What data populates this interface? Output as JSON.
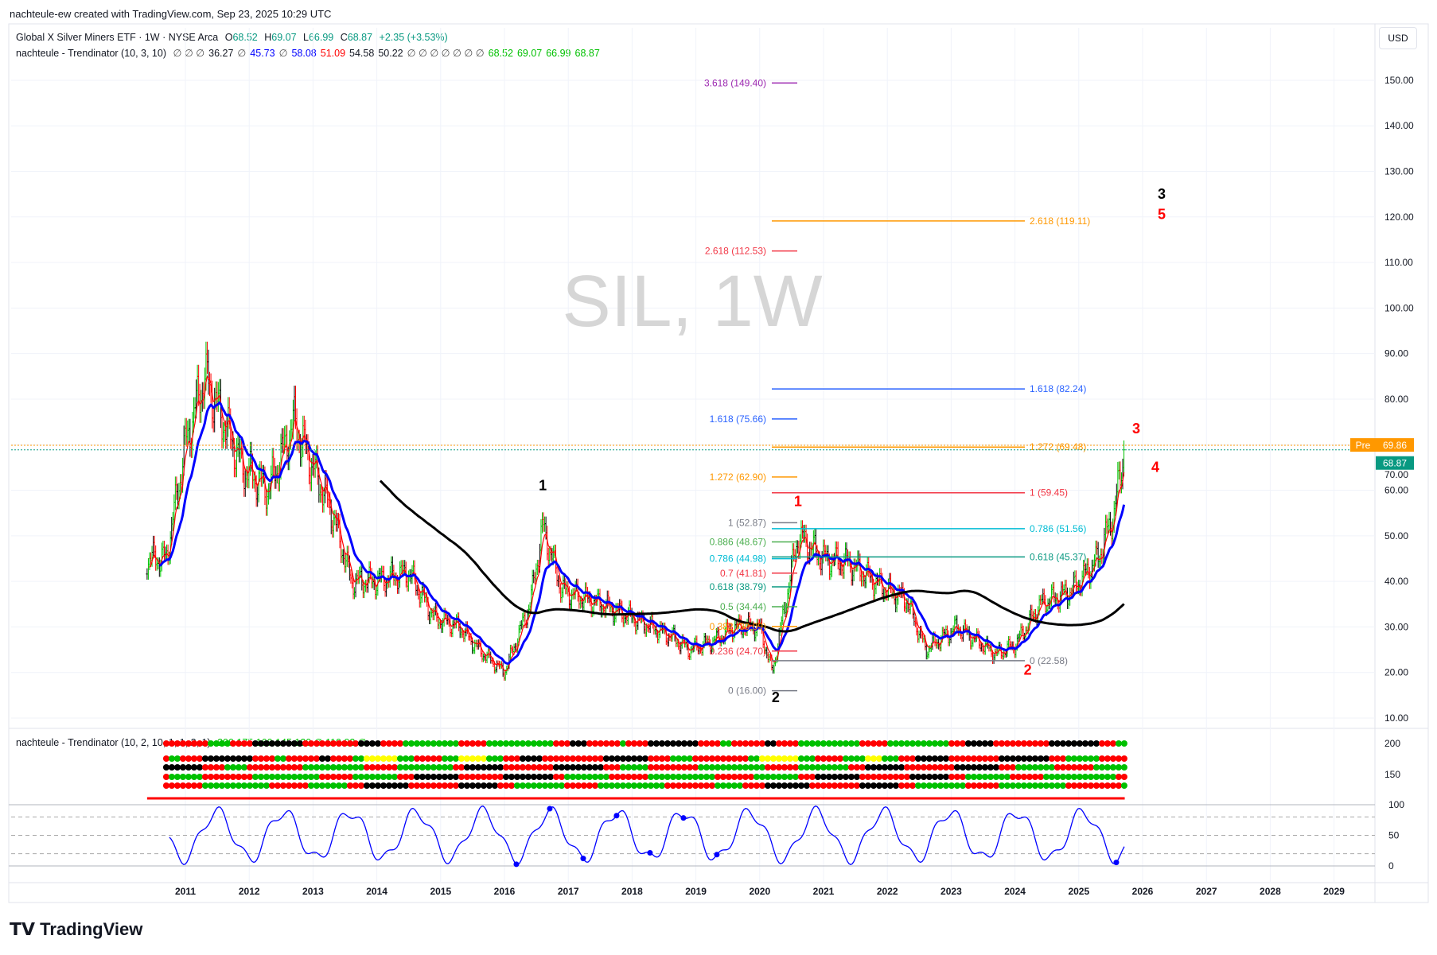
{
  "credit": "nachteule-ew created with TradingView.com, Sep 23, 2025 10:29 UTC",
  "legend": {
    "symbol": "Global X Silver Miners ETF · 1W · NYSE Arca",
    "o_label": "O",
    "o": "68.52",
    "h_label": "H",
    "h": "69.07",
    "l_label": "L",
    "l": "66.99",
    "c_label": "C",
    "c": "68.87",
    "change": "+2.35 (+3.53%)",
    "ind1_name": "nachteule - Trendinator (10, 3, 10)",
    "ind1_values": [
      {
        "t": "∅ ∅ ∅",
        "c": "#555"
      },
      {
        "t": "36.27",
        "c": "#131722"
      },
      {
        "t": "∅",
        "c": "#555"
      },
      {
        "t": "45.73",
        "c": "#0000ff"
      },
      {
        "t": "∅",
        "c": "#555"
      },
      {
        "t": "58.08",
        "c": "#0000ff"
      },
      {
        "t": "51.09",
        "c": "#ff0000"
      },
      {
        "t": "54.58",
        "c": "#131722"
      },
      {
        "t": "50.22",
        "c": "#131722"
      },
      {
        "t": "∅ ∅ ∅ ∅ ∅ ∅ ∅",
        "c": "#555"
      },
      {
        "t": "68.52",
        "c": "#00c000"
      },
      {
        "t": "69.07",
        "c": "#00c000"
      },
      {
        "t": "66.99",
        "c": "#00c000"
      },
      {
        "t": "68.87",
        "c": "#00c000"
      }
    ],
    "ind2_name": "nachteule - Trendinator (10, 2, 10, 1, 1, 2, 1)",
    "ind2_values": "200 175 160 145 130 ∅ 110 93 ∅"
  },
  "currency": "USD",
  "watermark": "SIL, 1W",
  "pre_label": "Pre",
  "pre_price": "69.86",
  "last_price": "68.87",
  "logo": "TradingView",
  "colors": {
    "up": "#00c000",
    "down": "#ff0000",
    "neutral": "#000000",
    "blue": "#0000ff",
    "teal": "#089981",
    "orange": "#ff9800"
  },
  "chart_data": {
    "type": "candlestick",
    "symbol": "SIL",
    "interval": "1W",
    "x_ticks": [
      "2011",
      "2012",
      "2013",
      "2014",
      "2015",
      "2016",
      "2017",
      "2018",
      "2019",
      "2020",
      "2021",
      "2022",
      "2023",
      "2024",
      "2025",
      "2026",
      "2027",
      "2028",
      "2029"
    ],
    "y_ticks": [
      "150.00",
      "140.00",
      "130.00",
      "120.00",
      "110.00",
      "100.00",
      "90.00",
      "80.00",
      "70.00",
      "60.00",
      "50.00",
      "40.00",
      "30.00",
      "20.00",
      "10.00"
    ],
    "ylim": [
      10,
      150
    ],
    "close_keypoints": [
      [
        2010.4,
        45
      ],
      [
        2010.7,
        45
      ],
      [
        2011.0,
        70
      ],
      [
        2011.3,
        85
      ],
      [
        2011.6,
        75
      ],
      [
        2011.9,
        65
      ],
      [
        2012.3,
        60
      ],
      [
        2012.7,
        75
      ],
      [
        2013.0,
        65
      ],
      [
        2013.3,
        55
      ],
      [
        2013.6,
        40
      ],
      [
        2014.0,
        40
      ],
      [
        2014.5,
        42
      ],
      [
        2014.9,
        32
      ],
      [
        2015.3,
        30
      ],
      [
        2015.6,
        25
      ],
      [
        2016.0,
        20
      ],
      [
        2016.4,
        35
      ],
      [
        2016.6,
        52
      ],
      [
        2016.9,
        38
      ],
      [
        2017.5,
        35
      ],
      [
        2018.0,
        32
      ],
      [
        2018.6,
        28
      ],
      [
        2018.9,
        25
      ],
      [
        2019.3,
        27
      ],
      [
        2019.6,
        30
      ],
      [
        2020.0,
        30
      ],
      [
        2020.2,
        20
      ],
      [
        2020.6,
        50
      ],
      [
        2021.0,
        45
      ],
      [
        2021.4,
        44
      ],
      [
        2022.0,
        38
      ],
      [
        2022.3,
        36
      ],
      [
        2022.6,
        25
      ],
      [
        2023.1,
        30
      ],
      [
        2023.7,
        24
      ],
      [
        2024.0,
        26
      ],
      [
        2024.4,
        35
      ],
      [
        2024.9,
        38
      ],
      [
        2025.3,
        45
      ],
      [
        2025.55,
        55
      ],
      [
        2025.72,
        68.87
      ]
    ],
    "fib_levels": [
      {
        "label": "3.618 (149.40)",
        "value": 149.4,
        "color": "#9c27b0",
        "long": false
      },
      {
        "label": "2.618 (119.11)",
        "value": 119.11,
        "color": "#ff9800",
        "long": true
      },
      {
        "label": "2.618 (112.53)",
        "value": 112.53,
        "color": "#f23645",
        "long": false
      },
      {
        "label": "1.618 (82.24)",
        "value": 82.24,
        "color": "#2962ff",
        "long": true
      },
      {
        "label": "1.618 (75.66)",
        "value": 75.66,
        "color": "#2962ff",
        "long": false
      },
      {
        "label": "1.272 (69.48)",
        "value": 69.48,
        "color": "#ff9800",
        "long": true
      },
      {
        "label": "1.272 (62.90)",
        "value": 62.9,
        "color": "#ff9800",
        "long": false
      },
      {
        "label": "1 (59.45)",
        "value": 59.45,
        "color": "#f23645",
        "long": true
      },
      {
        "label": "1 (52.87)",
        "value": 52.87,
        "color": "#787b86",
        "long": false
      },
      {
        "label": "0.786 (51.56)",
        "value": 51.56,
        "color": "#00bcd4",
        "long": true
      },
      {
        "label": "0.886 (48.67)",
        "value": 48.67,
        "color": "#4caf50",
        "long": false
      },
      {
        "label": "0.618 (45.37)",
        "value": 45.37,
        "color": "#089981",
        "long": true
      },
      {
        "label": "0.786 (44.98)",
        "value": 44.98,
        "color": "#00bcd4",
        "long": false
      },
      {
        "label": "0.7 (41.81)",
        "value": 41.81,
        "color": "#f23645",
        "long": false
      },
      {
        "label": "0.618 (38.79)",
        "value": 38.79,
        "color": "#089981",
        "long": false
      },
      {
        "label": "0.5 (34.44)",
        "value": 34.44,
        "color": "#4caf50",
        "long": false
      },
      {
        "label": "0.382 (30.09)",
        "value": 30.09,
        "color": "#ff9800",
        "long": false
      },
      {
        "label": "0.236 (24.70)",
        "value": 24.7,
        "color": "#f23645",
        "long": false
      },
      {
        "label": "0 (22.58)",
        "value": 22.58,
        "color": "#787b86",
        "long": true
      },
      {
        "label": "0 (16.00)",
        "value": 16.0,
        "color": "#787b86",
        "long": false
      }
    ],
    "wave_labels": [
      {
        "t": "1",
        "x": 2016.6,
        "v": 60,
        "c": "#000000"
      },
      {
        "t": "2",
        "x": 2020.25,
        "v": 13.5,
        "c": "#000000"
      },
      {
        "t": "3",
        "x": 2026.3,
        "v": 124,
        "c": "#000000"
      },
      {
        "t": "1",
        "x": 2020.6,
        "v": 56.5,
        "c": "#ff0000"
      },
      {
        "t": "2",
        "x": 2024.2,
        "v": 19.5,
        "c": "#ff0000"
      },
      {
        "t": "3",
        "x": 2025.9,
        "v": 72.5,
        "c": "#ff0000"
      },
      {
        "t": "4",
        "x": 2026.2,
        "v": 64,
        "c": "#ff0000"
      },
      {
        "t": "5",
        "x": 2026.3,
        "v": 119.5,
        "c": "#ff0000"
      }
    ],
    "osc_ticks": [
      "100",
      "50",
      "0"
    ],
    "band_ticks": [
      "200",
      "150"
    ]
  }
}
